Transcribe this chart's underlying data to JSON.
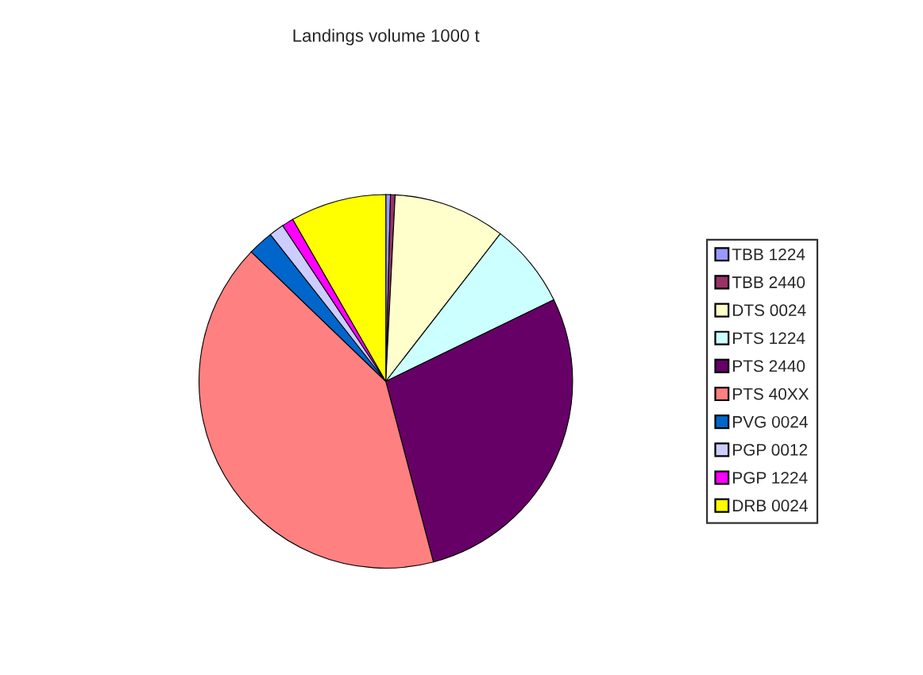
{
  "chart_data": {
    "type": "pie",
    "title": "Landings volume 1000 t",
    "categories": [
      "TBB 1224",
      "TBB 2440",
      "DTS 0024",
      "PTS 1224",
      "PTS 2440",
      "PTS 40XX",
      "PVG 0024",
      "PGP 0012",
      "PGP 1224",
      "DRB 0024"
    ],
    "values": [
      0.4,
      0.4,
      9.7,
      7.3,
      28.1,
      41.3,
      2.2,
      1.3,
      1.0,
      8.3
    ],
    "colors": [
      "#9999ff",
      "#993366",
      "#ffffcc",
      "#ccffff",
      "#660066",
      "#ff8080",
      "#0066cc",
      "#ccccff",
      "#ff00ff",
      "#ffff00"
    ],
    "legend": "right"
  }
}
